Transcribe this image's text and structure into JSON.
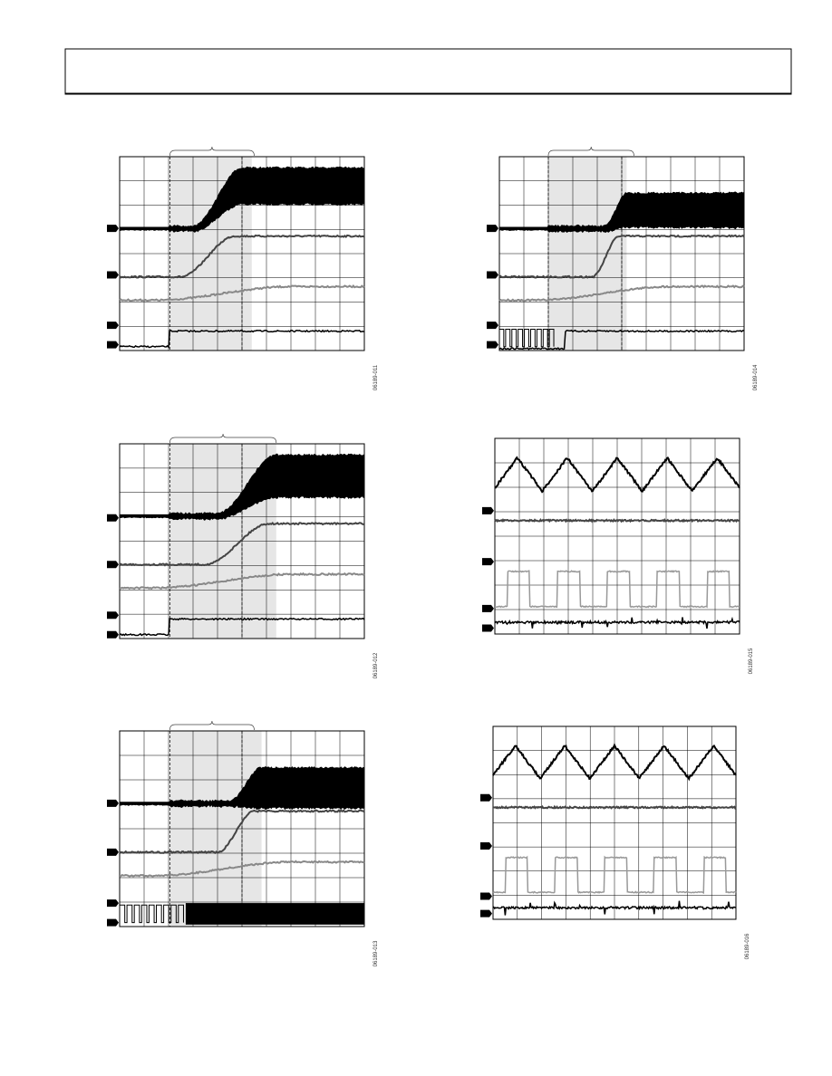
{
  "figures": [
    {
      "id": "06189-011"
    },
    {
      "id": "06189-014"
    },
    {
      "id": "06189-012"
    },
    {
      "id": "06189-015"
    },
    {
      "id": "06189-013"
    },
    {
      "id": "06189-016"
    }
  ]
}
